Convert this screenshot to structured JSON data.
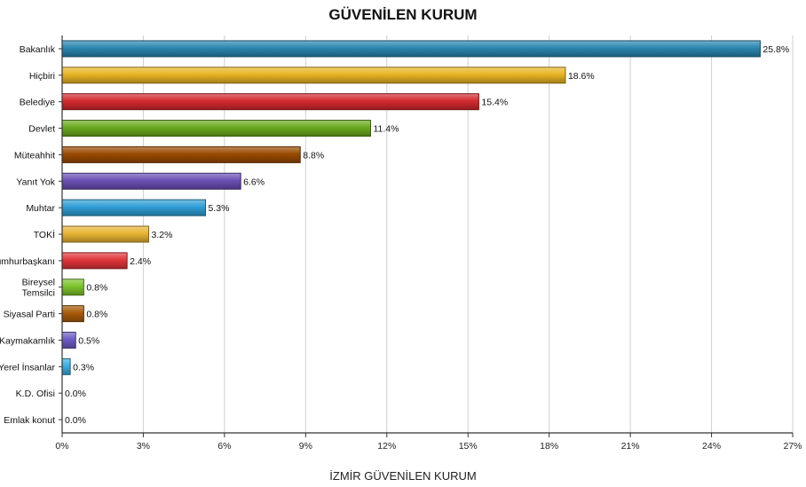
{
  "chart_data": {
    "type": "bar",
    "orientation": "horizontal",
    "title": "GÜVENİLEN KURUM",
    "xlabel": "İZMİR GÜVENİLEN KURUM",
    "ylabel": "",
    "xlim": [
      0,
      27
    ],
    "tick_values": [
      0,
      3,
      6,
      9,
      12,
      15,
      18,
      21,
      24,
      27
    ],
    "tick_labels": [
      "0%",
      "3%",
      "6%",
      "9%",
      "12%",
      "15%",
      "18%",
      "21%",
      "24%",
      "27%"
    ],
    "grid": "vertical",
    "categories": [
      "Bakanlık",
      "Hiçbiri",
      "Belediye",
      "Devlet",
      "Müteahhit",
      "Yanıt Yok",
      "Muhtar",
      "TOKİ",
      "Cumhurbaşkanı",
      "Bireysel Temsilci",
      "Siyasal Parti",
      "Kaymakamlık",
      "Yerel İnsanlar",
      "K.D. Ofisi",
      "Emlak konut"
    ],
    "category_lines": [
      [
        "Bakanlık"
      ],
      [
        "Hiçbiri"
      ],
      [
        "Belediye"
      ],
      [
        "Devlet"
      ],
      [
        "Müteahhit"
      ],
      [
        "Yanıt Yok"
      ],
      [
        "Muhtar"
      ],
      [
        "TOKİ"
      ],
      [
        "Cumhurbaşkanı"
      ],
      [
        "Bireysel",
        "Temsilci"
      ],
      [
        "Siyasal Parti"
      ],
      [
        "Kaymakamlık"
      ],
      [
        "Yerel İnsanlar"
      ],
      [
        "K.D. Ofisi"
      ],
      [
        "Emlak konut"
      ]
    ],
    "values": [
      25.8,
      18.6,
      15.4,
      11.4,
      8.8,
      6.6,
      5.3,
      3.2,
      2.4,
      0.8,
      0.8,
      0.5,
      0.3,
      0.0,
      0.0
    ],
    "value_labels": [
      "25.8%",
      "18.6%",
      "15.4%",
      "11.4%",
      "8.8%",
      "6.6%",
      "5.3%",
      "3.2%",
      "2.4%",
      "0.8%",
      "0.8%",
      "0.5%",
      "0.3%",
      "0.0%",
      "0.0%"
    ],
    "colors": [
      "#2a86b0",
      "#e8b424",
      "#d42a2e",
      "#6aaa1e",
      "#9a4a00",
      "#6b4fb5",
      "#2f9fd6",
      "#e8b434",
      "#e0353a",
      "#7cc32a",
      "#a85a08",
      "#6e5cc6",
      "#3aaee0",
      "#888888",
      "#888888"
    ]
  }
}
